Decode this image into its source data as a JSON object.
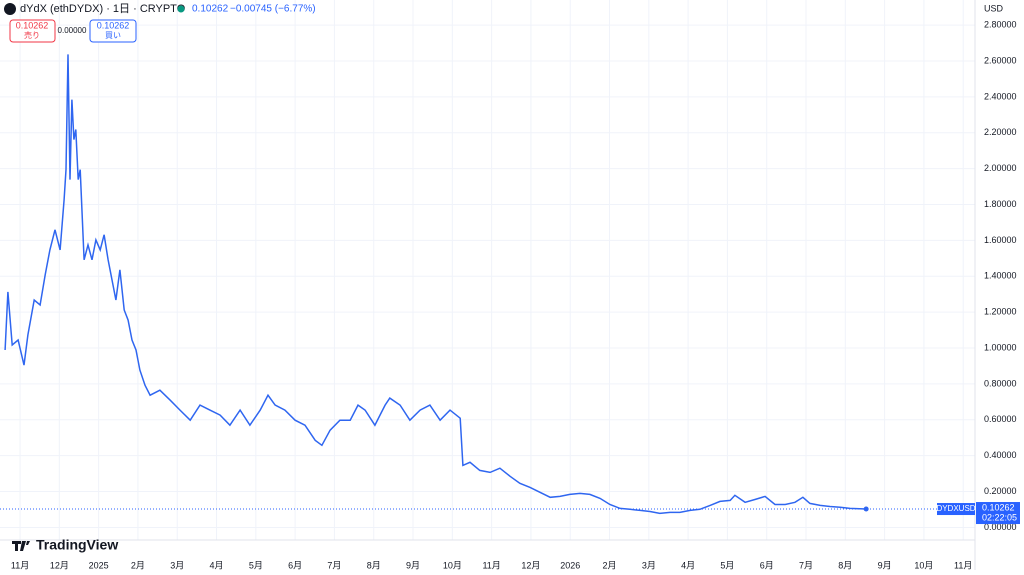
{
  "header": {
    "symbol": "dYdX (ethDYDX) · 1日 · CRYPTO",
    "price": "0.10262",
    "change": "−0.00745 (−6.77%)",
    "sell_price": "0.10262",
    "sell_label": "売り",
    "spread": "0.00000",
    "buy_price": "0.10262",
    "buy_label": "買い",
    "currency": "USD",
    "ticker": "DYDXUSD",
    "countdown": "02:22:05",
    "brand": "TradingView"
  },
  "chart_data": {
    "type": "line",
    "color": "#2f66f0",
    "grid": true,
    "last_price": 0.10262,
    "xlim": [
      -0.51,
      24.3
    ],
    "ylim": [
      -0.07,
      2.94
    ],
    "xticks": [
      {
        "value": 0,
        "label": "11月"
      },
      {
        "value": 1,
        "label": "12月"
      },
      {
        "value": 2,
        "label": "2025"
      },
      {
        "value": 3,
        "label": "2月"
      },
      {
        "value": 4,
        "label": "3月"
      },
      {
        "value": 5,
        "label": "4月"
      },
      {
        "value": 6,
        "label": "5月"
      },
      {
        "value": 7,
        "label": "6月"
      },
      {
        "value": 8,
        "label": "7月"
      },
      {
        "value": 9,
        "label": "8月"
      },
      {
        "value": 10,
        "label": "9月"
      },
      {
        "value": 11,
        "label": "10月"
      },
      {
        "value": 12,
        "label": "11月"
      },
      {
        "value": 13,
        "label": "12月"
      },
      {
        "value": 14,
        "label": "2026"
      },
      {
        "value": 15,
        "label": "2月"
      },
      {
        "value": 16,
        "label": "3月"
      },
      {
        "value": 17,
        "label": "4月"
      },
      {
        "value": 18,
        "label": "5月"
      },
      {
        "value": 19,
        "label": "6月"
      },
      {
        "value": 20,
        "label": "7月"
      },
      {
        "value": 21,
        "label": "8月"
      },
      {
        "value": 22,
        "label": "9月"
      },
      {
        "value": 23,
        "label": "10月"
      },
      {
        "value": 24,
        "label": "11月"
      }
    ],
    "yticks": [
      {
        "value": 0,
        "label": "0.00000"
      },
      {
        "value": 0.2,
        "label": "0.20000"
      },
      {
        "value": 0.4,
        "label": "0.40000"
      },
      {
        "value": 0.6,
        "label": "0.60000"
      },
      {
        "value": 0.8,
        "label": "0.80000"
      },
      {
        "value": 1,
        "label": "1.00000"
      },
      {
        "value": 1.2,
        "label": "1.20000"
      },
      {
        "value": 1.4,
        "label": "1.40000"
      },
      {
        "value": 1.6,
        "label": "1.60000"
      },
      {
        "value": 1.8,
        "label": "1.80000"
      },
      {
        "value": 2,
        "label": "2.00000"
      },
      {
        "value": 2.2,
        "label": "2.20000"
      },
      {
        "value": 2.4,
        "label": "2.40000"
      },
      {
        "value": 2.6,
        "label": "2.60000"
      },
      {
        "value": 2.8,
        "label": "2.80000"
      }
    ],
    "x": [
      -0.38,
      -0.31,
      -0.2,
      -0.05,
      0.1,
      0.2,
      0.36,
      0.51,
      0.64,
      0.76,
      0.89,
      1.02,
      1.12,
      1.17,
      1.22,
      1.27,
      1.32,
      1.37,
      1.42,
      1.48,
      1.53,
      1.63,
      1.73,
      1.83,
      1.93,
      2.04,
      2.14,
      2.24,
      2.34,
      2.44,
      2.54,
      2.65,
      2.75,
      2.85,
      2.95,
      3.05,
      3.18,
      3.31,
      3.56,
      3.82,
      4.07,
      4.33,
      4.58,
      4.83,
      5.09,
      5.34,
      5.6,
      5.85,
      6.11,
      6.31,
      6.49,
      6.74,
      7.0,
      7.25,
      7.51,
      7.68,
      7.89,
      8.14,
      8.4,
      8.6,
      8.78,
      9.03,
      9.29,
      9.41,
      9.67,
      9.92,
      10.18,
      10.43,
      10.69,
      10.94,
      11.2,
      11.27,
      11.45,
      11.7,
      11.96,
      12.21,
      12.47,
      12.72,
      12.98,
      13.23,
      13.49,
      13.74,
      13.99,
      14.25,
      14.5,
      14.76,
      15.01,
      15.27,
      15.52,
      15.78,
      16.03,
      16.28,
      16.54,
      16.79,
      17.05,
      17.3,
      17.56,
      17.81,
      18.07,
      18.19,
      18.45,
      18.7,
      18.96,
      19.21,
      19.47,
      19.72,
      19.92,
      20.1,
      20.36,
      20.61,
      20.87,
      21.12,
      21.53
    ],
    "series": [
      {
        "values": [
          0.989,
          1.313,
          1.017,
          1.045,
          0.905,
          1.073,
          1.268,
          1.24,
          1.408,
          1.547,
          1.659,
          1.547,
          1.827,
          1.994,
          2.637,
          1.939,
          2.385,
          2.162,
          2.218,
          1.939,
          1.994,
          1.492,
          1.575,
          1.492,
          1.603,
          1.547,
          1.631,
          1.492,
          1.38,
          1.268,
          1.436,
          1.212,
          1.156,
          1.045,
          0.989,
          0.877,
          0.793,
          0.737,
          0.765,
          0.709,
          0.654,
          0.598,
          0.682,
          0.654,
          0.626,
          0.57,
          0.654,
          0.57,
          0.654,
          0.737,
          0.682,
          0.654,
          0.598,
          0.57,
          0.486,
          0.458,
          0.542,
          0.598,
          0.598,
          0.682,
          0.654,
          0.57,
          0.682,
          0.721,
          0.682,
          0.598,
          0.654,
          0.682,
          0.598,
          0.654,
          0.609,
          0.346,
          0.363,
          0.318,
          0.307,
          0.33,
          0.285,
          0.246,
          0.223,
          0.196,
          0.168,
          0.173,
          0.184,
          0.19,
          0.184,
          0.162,
          0.128,
          0.106,
          0.101,
          0.095,
          0.089,
          0.078,
          0.084,
          0.084,
          0.095,
          0.101,
          0.123,
          0.145,
          0.151,
          0.179,
          0.14,
          0.156,
          0.173,
          0.128,
          0.128,
          0.14,
          0.168,
          0.134,
          0.123,
          0.117,
          0.112,
          0.106,
          0.10262
        ]
      }
    ]
  }
}
